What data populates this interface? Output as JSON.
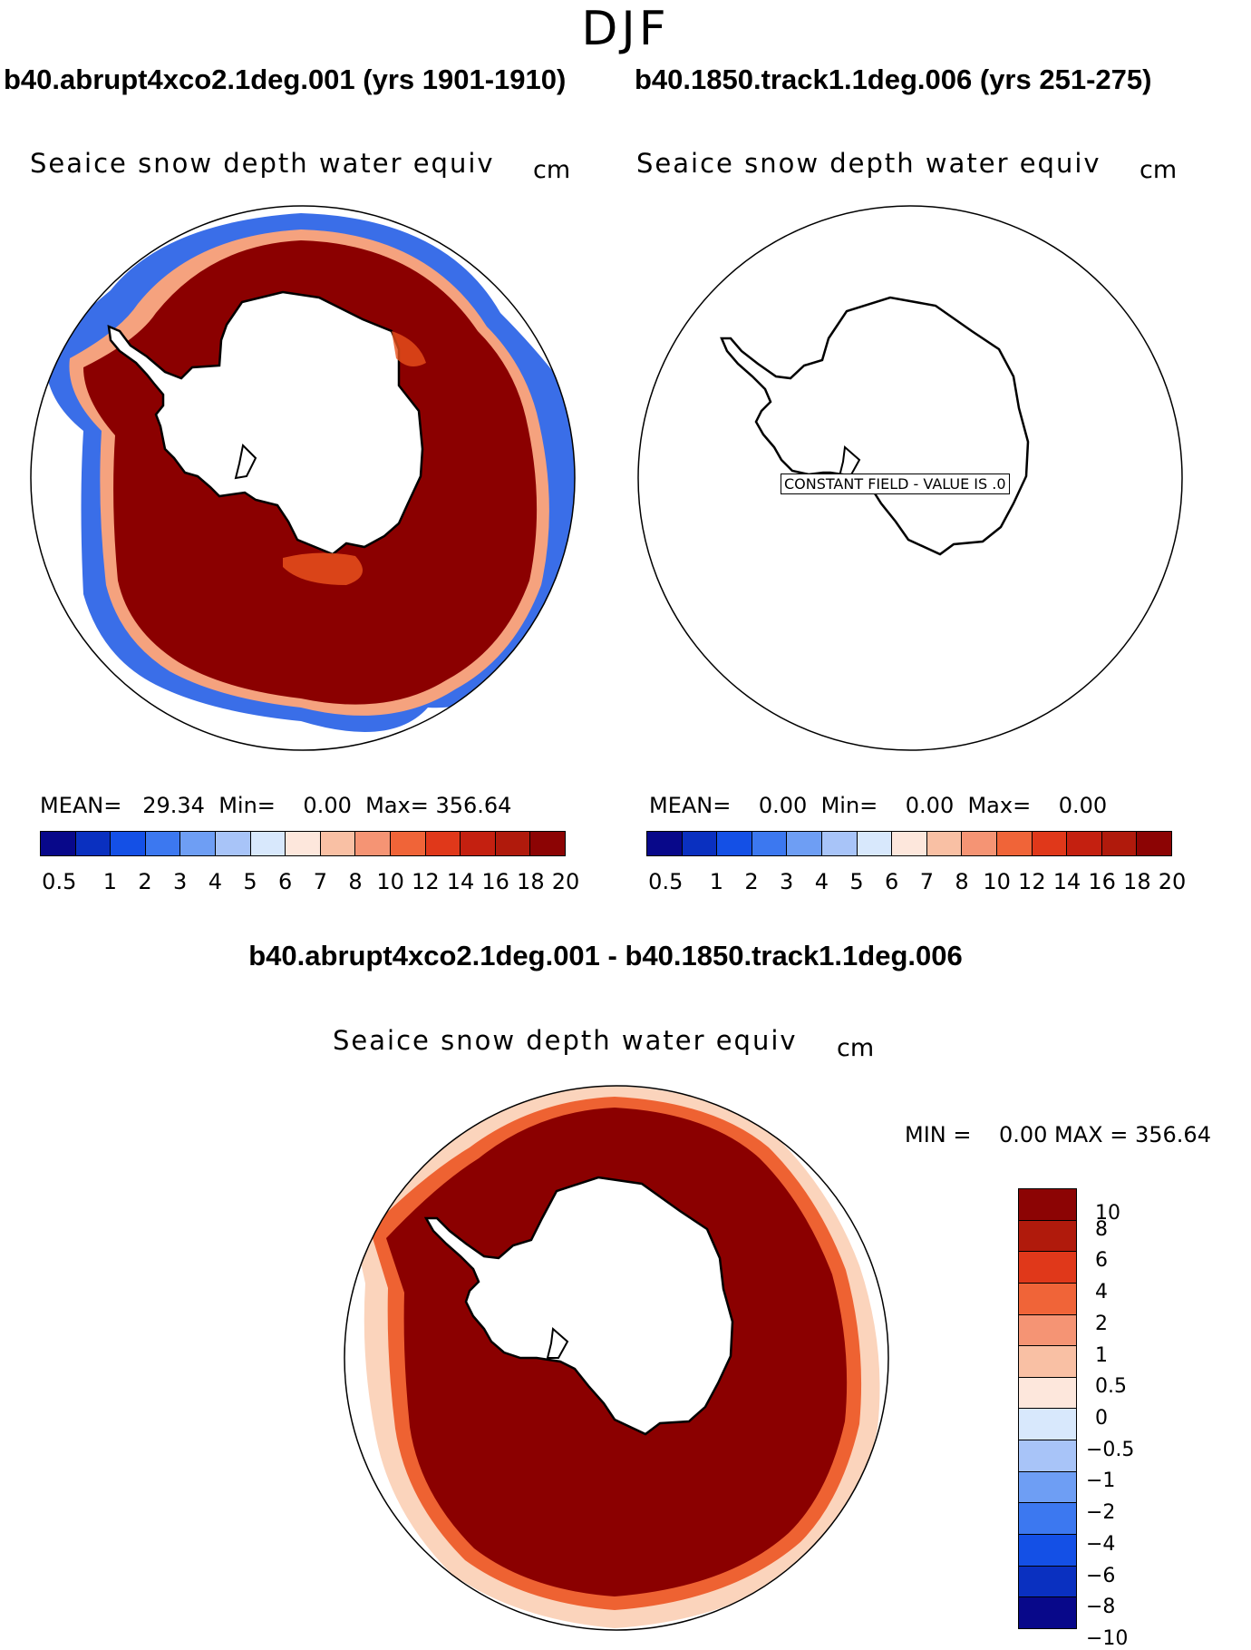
{
  "season": "DJF",
  "panels": {
    "left": {
      "case_title": "b40.abrupt4xco2.1deg.001 (yrs 1901-1910)",
      "var_title": "Seaice snow depth water equiv",
      "units": "cm",
      "stats": "MEAN=   29.34  Min=    0.00  Max= 356.64"
    },
    "right": {
      "case_title": "b40.1850.track1.1deg.006 (yrs 251-275)",
      "var_title": "Seaice snow depth water equiv",
      "units": "cm",
      "stats": "MEAN=    0.00  Min=    0.00  Max=    0.00",
      "constant_label": "CONSTANT FIELD - VALUE IS .0"
    },
    "diff": {
      "case_title": "b40.abrupt4xco2.1deg.001 - b40.1850.track1.1deg.006",
      "var_title": "Seaice snow depth water equiv",
      "units": "cm",
      "stats": "MIN =    0.00 MAX = 356.64"
    }
  },
  "abs_colorbar": {
    "colors": [
      "#08088a",
      "#0a30c0",
      "#1450e6",
      "#3c78f0",
      "#6e9ef4",
      "#a8c4f8",
      "#d8e8fc",
      "#fde7dc",
      "#f9c0a4",
      "#f59474",
      "#f06438",
      "#e0381a",
      "#c42010",
      "#b01a0c",
      "#8c0404"
    ],
    "ticks": [
      "0.5",
      "1",
      "2",
      "3",
      "4",
      "5",
      "6",
      "7",
      "8",
      "10",
      "12",
      "14",
      "16",
      "18",
      "20"
    ]
  },
  "diff_colorbar": {
    "colors": [
      "#8c0404",
      "#b01a0c",
      "#e0381a",
      "#f06438",
      "#f59474",
      "#f9c0a4",
      "#fde7dc",
      "#d8e8fc",
      "#a8c4f8",
      "#6e9ef4",
      "#3c78f0",
      "#1450e6",
      "#0a30c0",
      "#08088a"
    ],
    "ticks": [
      "10",
      "8",
      "6",
      "4",
      "2",
      "1",
      "0.5",
      "0",
      "−0.5",
      "−1",
      "−2",
      "−4",
      "−6",
      "−8",
      "−10"
    ]
  },
  "colors": {
    "ice_high": "#8b0000",
    "ice_edge_blue": "#2a5fe0",
    "ice_edge_light": "#f4a582",
    "land": "#ffffff",
    "coast": "#000000"
  }
}
